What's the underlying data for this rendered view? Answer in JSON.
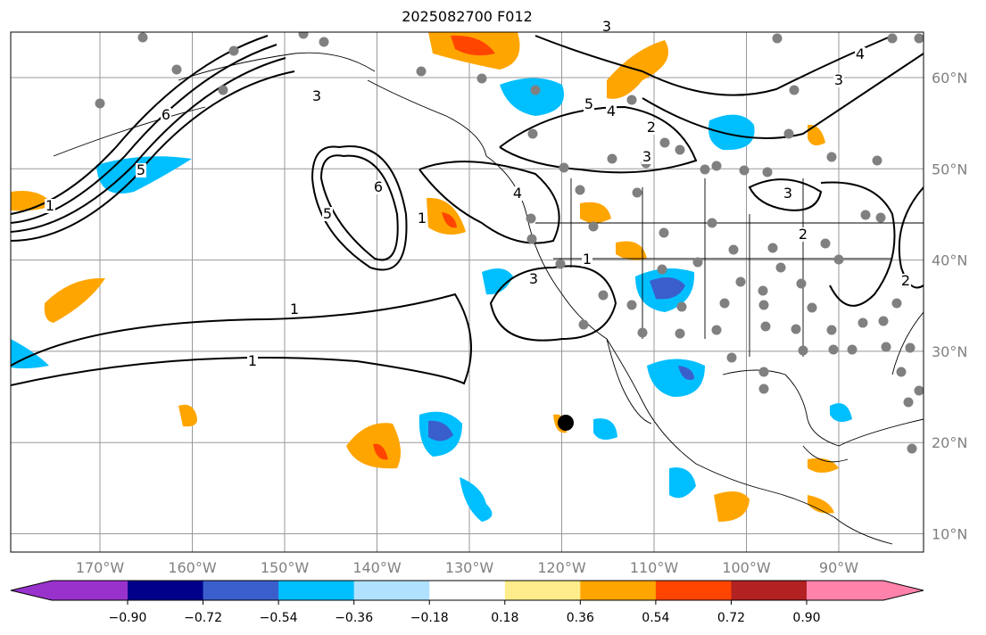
{
  "title": "2025082700 F012",
  "lon_ticks": [
    "170°W",
    "160°W",
    "150°W",
    "140°W",
    "130°W",
    "120°W",
    "110°W",
    "100°W",
    "90°W"
  ],
  "lon_values": [
    -170,
    -160,
    -150,
    -140,
    -130,
    -120,
    -110,
    -100,
    -90
  ],
  "lat_ticks": [
    "60°N",
    "50°N",
    "40°N",
    "30°N",
    "20°N",
    "10°N"
  ],
  "lat_values": [
    60,
    50,
    40,
    30,
    20,
    10
  ],
  "colorbar": {
    "colors": [
      "#9932cc",
      "#00008b",
      "#3a5fcd",
      "#00bfff",
      "#b0e2ff",
      "#ffffff",
      "#ffec8b",
      "#ffa500",
      "#ff4500",
      "#b22222",
      "#ff82ab"
    ],
    "labels": [
      "−0.90",
      "−0.72",
      "−0.54",
      "−0.36",
      "−0.18",
      "0.18",
      "0.36",
      "0.54",
      "0.72",
      "0.90"
    ]
  },
  "contour_labels": [
    "1",
    "1",
    "1",
    "2",
    "3",
    "3",
    "3",
    "4",
    "5",
    "6",
    "1",
    "5",
    "4",
    "3",
    "2",
    "1",
    "3",
    "2",
    "3",
    "4",
    "5",
    "6"
  ]
}
